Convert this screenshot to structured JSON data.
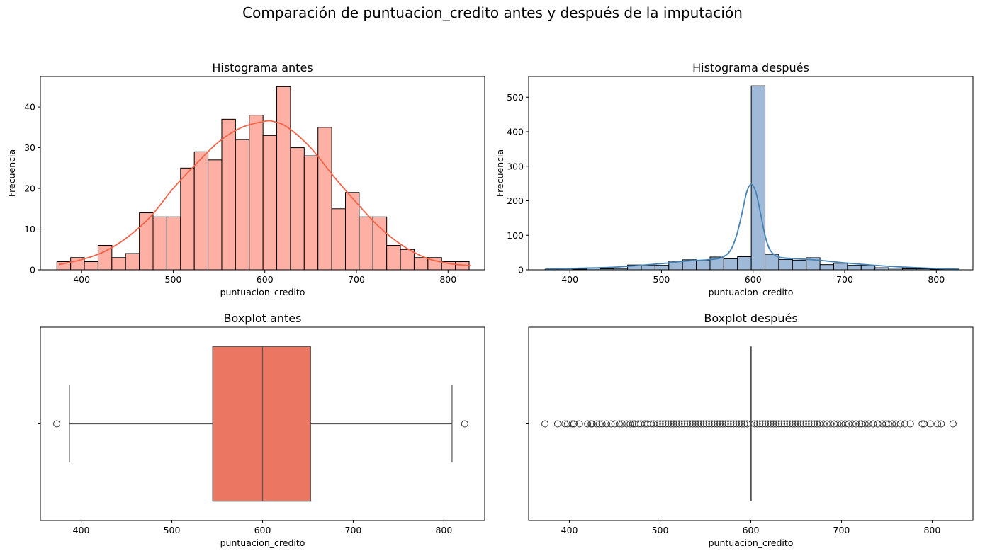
{
  "figure": {
    "title": "Comparación de puntuacion_credito antes y después de la imputación"
  },
  "colors": {
    "antes_bar": "#fdb0a3",
    "antes_kde": "#f36449",
    "antes_box": "#eb7662",
    "despues_bar": "#9fbad8",
    "despues_kde": "#4682b4",
    "box_line": "#555555"
  },
  "chart_data": [
    {
      "type": "bar",
      "id": "hist_antes",
      "title": "Histograma antes",
      "xlabel": "puntuacion_credito",
      "ylabel": "Frecuencia",
      "xlim": [
        355,
        840
      ],
      "ylim": [
        0,
        47.5
      ],
      "xticks": [
        400,
        500,
        600,
        700,
        800
      ],
      "yticks": [
        0,
        10,
        20,
        30,
        40
      ],
      "bin_start": 373,
      "bin_width": 15,
      "values": [
        2,
        3,
        2,
        6,
        3,
        4,
        14,
        13,
        13,
        25,
        29,
        27,
        37,
        32,
        38,
        33,
        45,
        30,
        28,
        35,
        15,
        19,
        13,
        13,
        6,
        5,
        3,
        3,
        2,
        2
      ],
      "kde": {
        "x": [
          375,
          400,
          425,
          450,
          475,
          500,
          525,
          550,
          575,
          600,
          610,
          625,
          650,
          675,
          700,
          725,
          750,
          775,
          800,
          825
        ],
        "y": [
          1.3,
          2.5,
          4.5,
          8,
          13,
          20,
          26,
          31.5,
          35,
          36.5,
          36.4,
          35,
          30,
          23,
          16.5,
          10.5,
          6,
          3,
          1.6,
          1
        ]
      }
    },
    {
      "type": "bar",
      "id": "hist_despues",
      "title": "Histograma después",
      "xlabel": "puntuacion_credito",
      "ylabel": "Frecuencia",
      "xlim": [
        355,
        840
      ],
      "ylim": [
        0,
        560
      ],
      "xticks": [
        400,
        500,
        600,
        700,
        800
      ],
      "yticks": [
        0,
        100,
        200,
        300,
        400,
        500
      ],
      "bin_start": 373,
      "bin_width": 15,
      "values": [
        2,
        3,
        2,
        6,
        3,
        4,
        14,
        13,
        13,
        25,
        29,
        27,
        37,
        32,
        38,
        533,
        45,
        30,
        28,
        35,
        15,
        19,
        13,
        13,
        6,
        5,
        3,
        3,
        2,
        2
      ],
      "kde": {
        "x": [
          373,
          400,
          450,
          500,
          525,
          550,
          565,
          575,
          582,
          588,
          593,
          598,
          603,
          608,
          613,
          618,
          625,
          635,
          650,
          675,
          700,
          750,
          800,
          825
        ],
        "y": [
          2,
          4,
          8,
          18,
          25,
          29,
          35,
          55,
          100,
          165,
          225,
          248,
          225,
          165,
          100,
          60,
          40,
          34,
          32,
          27,
          20,
          10,
          4,
          2
        ]
      }
    },
    {
      "type": "box",
      "id": "box_antes",
      "title": "Boxplot antes",
      "xlabel": "puntuacion_credito",
      "xlim": [
        355,
        845
      ],
      "xticks": [
        400,
        500,
        600,
        700,
        800
      ],
      "whisker_low": 387,
      "q1": 545,
      "median": 600,
      "q3": 653,
      "whisker_high": 809,
      "outliers": [
        373,
        823
      ]
    },
    {
      "type": "box",
      "id": "box_despues",
      "title": "Boxplot después",
      "xlabel": "puntuacion_credito",
      "xlim": [
        355,
        845
      ],
      "xticks": [
        400,
        500,
        600,
        700,
        800
      ],
      "median": 600,
      "q1": 599.5,
      "q3": 600.5,
      "outliers": [
        373,
        387,
        395,
        398,
        403,
        405,
        411,
        420,
        424,
        425,
        430,
        433,
        436,
        441,
        446,
        450,
        455,
        458,
        463,
        467,
        470,
        472,
        476,
        479,
        483,
        486,
        490,
        493,
        497,
        500,
        503,
        506,
        509,
        512,
        515,
        518,
        521,
        524,
        527,
        530,
        533,
        536,
        539,
        542,
        545,
        548,
        551,
        554,
        557,
        560,
        563,
        566,
        569,
        572,
        575,
        578,
        581,
        584,
        587,
        590,
        593,
        596,
        604,
        607,
        610,
        613,
        616,
        619,
        622,
        625,
        628,
        631,
        634,
        637,
        640,
        643,
        646,
        649,
        652,
        655,
        658,
        661,
        664,
        667,
        670,
        673,
        676,
        680,
        684,
        688,
        692,
        696,
        700,
        704,
        708,
        712,
        716,
        720,
        722,
        726,
        730,
        735,
        740,
        745,
        749,
        752,
        756,
        760,
        765,
        770,
        776,
        789,
        791,
        798,
        806,
        810,
        823
      ]
    }
  ]
}
